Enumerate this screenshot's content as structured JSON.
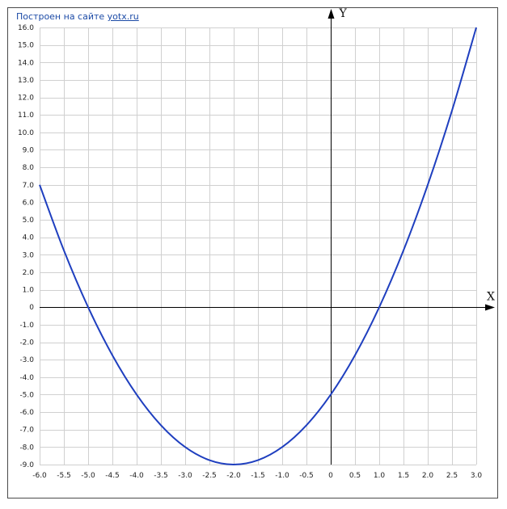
{
  "credit": {
    "text": "Построен на сайте",
    "link": "yotx.ru"
  },
  "chart_data": {
    "type": "line",
    "xlabel": "X",
    "ylabel": "Y",
    "xlim": [
      -6.0,
      3.0
    ],
    "ylim": [
      -9.0,
      16.0
    ],
    "x_ticks": [
      "-6.0",
      "-5.5",
      "-5.0",
      "-4.5",
      "-4.0",
      "-3.5",
      "-3.0",
      "-2.5",
      "-2.0",
      "-1.5",
      "-1.0",
      "-0.5",
      "0",
      "0.5",
      "1.0",
      "1.5",
      "2.0",
      "2.5",
      "3.0"
    ],
    "y_ticks": [
      "16.0",
      "15.0",
      "14.0",
      "13.0",
      "12.0",
      "11.0",
      "10.0",
      "9.0",
      "8.0",
      "7.0",
      "6.0",
      "5.0",
      "4.0",
      "3.0",
      "2.0",
      "1.0",
      "0",
      "-1.0",
      "-2.0",
      "-3.0",
      "-4.0",
      "-5.0",
      "-6.0",
      "-7.0",
      "-8.0",
      "-9.0"
    ],
    "grid": true,
    "series": [
      {
        "color": "#1f3fbf",
        "x": [
          -6.0,
          -5.5,
          -5.0,
          -4.5,
          -4.0,
          -3.5,
          -3.0,
          -2.5,
          -2.0,
          -1.5,
          -1.0,
          -0.5,
          0.0,
          0.5,
          1.0,
          1.5,
          2.0,
          2.5,
          3.0
        ],
        "y": [
          7.0,
          3.25,
          0.0,
          -2.75,
          -5.0,
          -6.75,
          -8.0,
          -8.75,
          -9.0,
          -8.75,
          -8.0,
          -6.75,
          -5.0,
          -2.75,
          0.0,
          3.25,
          7.0,
          11.25,
          16.0
        ]
      }
    ]
  }
}
